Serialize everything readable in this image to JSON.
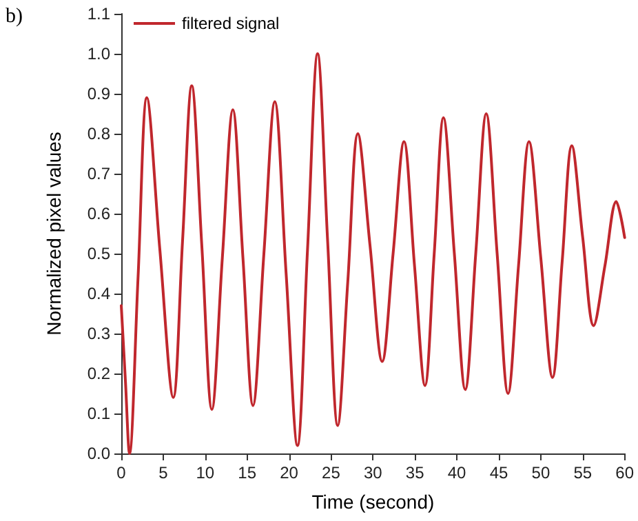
{
  "chart_data": {
    "type": "line",
    "xlabel": "Time (second)",
    "ylabel": "Normalized pixel values",
    "annotations": [
      "b)"
    ],
    "xlim": [
      0,
      60
    ],
    "xticks": [
      0,
      5,
      10,
      15,
      20,
      25,
      30,
      35,
      40,
      45,
      50,
      55,
      60
    ],
    "ylim": [
      0.0,
      1.1
    ],
    "yticks": [
      {
        "value": 0,
        "label": "0.0"
      },
      0.1,
      0.2,
      0.3,
      0.4,
      0.5,
      0.6,
      0.7,
      0.8,
      0.9,
      {
        "value": 1,
        "label": "1.0"
      },
      1.1
    ],
    "grid": false,
    "legend": "top left",
    "marker": "none",
    "line_style": "solid",
    "series": [
      {
        "name": "filtered signal",
        "color": "#c0272d",
        "x": [
          0,
          0.5,
          0.98,
          2.0,
          3.05,
          4.6,
          6.2,
          7.3,
          8.4,
          9.6,
          10.8,
          12.05,
          13.3,
          14.5,
          15.7,
          17.0,
          18.3,
          19.65,
          21.0,
          22.2,
          23.4,
          24.6,
          25.8,
          27.0,
          28.2,
          29.65,
          31.1,
          32.4,
          33.7,
          34.95,
          36.2,
          37.3,
          38.4,
          39.7,
          41.0,
          42.25,
          43.5,
          44.8,
          46.1,
          47.35,
          48.6,
          50.0,
          51.4,
          52.55,
          53.7,
          55.0,
          56.3,
          57.65,
          59.0,
          60
        ],
        "values": [
          0.37,
          0.18,
          0.0,
          0.44,
          0.89,
          0.51,
          0.14,
          0.53,
          0.92,
          0.52,
          0.11,
          0.49,
          0.86,
          0.49,
          0.12,
          0.5,
          0.88,
          0.45,
          0.02,
          0.51,
          1.0,
          0.53,
          0.07,
          0.43,
          0.8,
          0.52,
          0.23,
          0.5,
          0.78,
          0.47,
          0.17,
          0.5,
          0.84,
          0.5,
          0.16,
          0.5,
          0.85,
          0.5,
          0.15,
          0.47,
          0.78,
          0.49,
          0.19,
          0.48,
          0.77,
          0.54,
          0.32,
          0.47,
          0.63,
          0.54
        ]
      }
    ]
  }
}
